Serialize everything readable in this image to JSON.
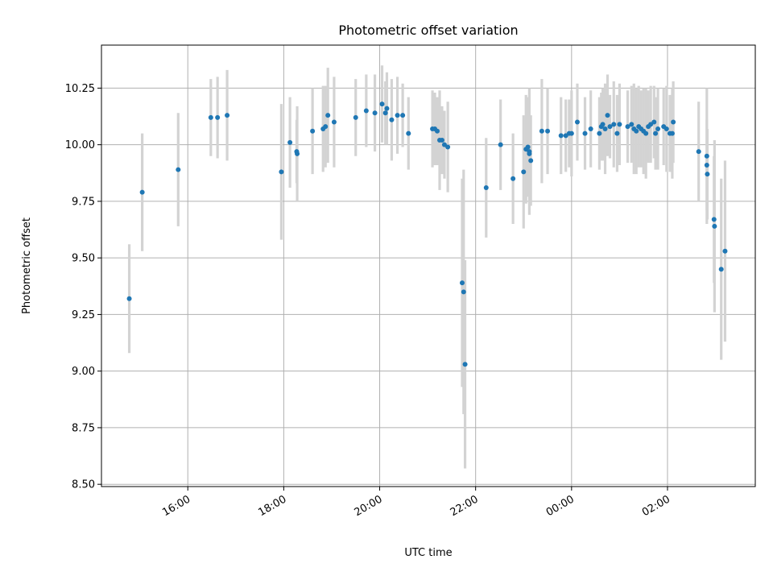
{
  "chart_data": {
    "type": "scatter",
    "title": "Photometric offset variation",
    "xlabel": "UTC time",
    "ylabel": "Photometric offset",
    "x_tick_labels": [
      "16:00",
      "18:00",
      "20:00",
      "22:00",
      "00:00",
      "02:00"
    ],
    "x_tick_hours": [
      16,
      18,
      20,
      22,
      24,
      26
    ],
    "y_tick_labels": [
      "8.50",
      "8.75",
      "9.00",
      "9.25",
      "9.50",
      "9.75",
      "10.00",
      "10.25"
    ],
    "y_ticks": [
      8.5,
      8.75,
      9.0,
      9.25,
      9.5,
      9.75,
      10.0,
      10.25
    ],
    "xlim_hours": [
      14.2,
      27.83
    ],
    "ylim": [
      8.49,
      10.44
    ],
    "grid": true,
    "point_color": "#1f77b4",
    "error_color": "#d3d3d3",
    "points": [
      {
        "h": 14.78,
        "y": 9.32,
        "e": 0.24
      },
      {
        "h": 15.05,
        "y": 9.79,
        "e": 0.26
      },
      {
        "h": 15.8,
        "y": 9.89,
        "e": 0.25
      },
      {
        "h": 16.48,
        "y": 10.12,
        "e": 0.17
      },
      {
        "h": 16.62,
        "y": 10.12,
        "e": 0.18
      },
      {
        "h": 16.82,
        "y": 10.13,
        "e": 0.2
      },
      {
        "h": 17.95,
        "y": 9.88,
        "e": 0.3
      },
      {
        "h": 18.13,
        "y": 10.01,
        "e": 0.2
      },
      {
        "h": 18.27,
        "y": 9.97,
        "e": 0.14
      },
      {
        "h": 18.28,
        "y": 9.96,
        "e": 0.21
      },
      {
        "h": 18.6,
        "y": 10.06,
        "e": 0.19
      },
      {
        "h": 18.82,
        "y": 10.07,
        "e": 0.19
      },
      {
        "h": 18.87,
        "y": 10.08,
        "e": 0.18
      },
      {
        "h": 18.92,
        "y": 10.13,
        "e": 0.21
      },
      {
        "h": 19.05,
        "y": 10.1,
        "e": 0.2
      },
      {
        "h": 19.5,
        "y": 10.12,
        "e": 0.17
      },
      {
        "h": 19.72,
        "y": 10.15,
        "e": 0.16
      },
      {
        "h": 19.9,
        "y": 10.14,
        "e": 0.17
      },
      {
        "h": 20.05,
        "y": 10.18,
        "e": 0.17
      },
      {
        "h": 20.12,
        "y": 10.14,
        "e": 0.14
      },
      {
        "h": 20.15,
        "y": 10.16,
        "e": 0.16
      },
      {
        "h": 20.25,
        "y": 10.11,
        "e": 0.18
      },
      {
        "h": 20.37,
        "y": 10.13,
        "e": 0.17
      },
      {
        "h": 20.48,
        "y": 10.13,
        "e": 0.14
      },
      {
        "h": 20.6,
        "y": 10.05,
        "e": 0.16
      },
      {
        "h": 21.1,
        "y": 10.07,
        "e": 0.17
      },
      {
        "h": 21.15,
        "y": 10.07,
        "e": 0.16
      },
      {
        "h": 21.2,
        "y": 10.06,
        "e": 0.15
      },
      {
        "h": 21.25,
        "y": 10.02,
        "e": 0.22
      },
      {
        "h": 21.3,
        "y": 10.02,
        "e": 0.15
      },
      {
        "h": 21.35,
        "y": 10.0,
        "e": 0.15
      },
      {
        "h": 21.42,
        "y": 9.99,
        "e": 0.2
      },
      {
        "h": 21.72,
        "y": 9.39,
        "e": 0.46
      },
      {
        "h": 21.75,
        "y": 9.35,
        "e": 0.54
      },
      {
        "h": 21.78,
        "y": 9.03,
        "e": 0.46
      },
      {
        "h": 22.22,
        "y": 9.81,
        "e": 0.22
      },
      {
        "h": 22.52,
        "y": 10.0,
        "e": 0.2
      },
      {
        "h": 22.78,
        "y": 9.85,
        "e": 0.2
      },
      {
        "h": 23.0,
        "y": 9.88,
        "e": 0.25
      },
      {
        "h": 23.05,
        "y": 9.98,
        "e": 0.24
      },
      {
        "h": 23.09,
        "y": 9.99,
        "e": 0.22
      },
      {
        "h": 23.12,
        "y": 9.97,
        "e": 0.28
      },
      {
        "h": 23.15,
        "y": 9.93,
        "e": 0.2
      },
      {
        "h": 23.12,
        "y": 9.96,
        "e": 0.18
      },
      {
        "h": 23.38,
        "y": 10.06,
        "e": 0.23
      },
      {
        "h": 23.5,
        "y": 10.06,
        "e": 0.19
      },
      {
        "h": 23.78,
        "y": 10.04,
        "e": 0.17
      },
      {
        "h": 23.88,
        "y": 10.04,
        "e": 0.16
      },
      {
        "h": 23.95,
        "y": 10.05,
        "e": 0.15
      },
      {
        "h": 24.0,
        "y": 10.05,
        "e": 0.19
      },
      {
        "h": 24.12,
        "y": 10.1,
        "e": 0.17
      },
      {
        "h": 24.28,
        "y": 10.05,
        "e": 0.16
      },
      {
        "h": 24.4,
        "y": 10.07,
        "e": 0.17
      },
      {
        "h": 24.58,
        "y": 10.05,
        "e": 0.16
      },
      {
        "h": 24.62,
        "y": 10.08,
        "e": 0.15
      },
      {
        "h": 24.65,
        "y": 10.09,
        "e": 0.16
      },
      {
        "h": 24.7,
        "y": 10.07,
        "e": 0.2
      },
      {
        "h": 24.75,
        "y": 10.13,
        "e": 0.18
      },
      {
        "h": 24.8,
        "y": 10.08,
        "e": 0.14
      },
      {
        "h": 24.88,
        "y": 10.09,
        "e": 0.19
      },
      {
        "h": 24.95,
        "y": 10.05,
        "e": 0.17
      },
      {
        "h": 25.0,
        "y": 10.09,
        "e": 0.18
      },
      {
        "h": 25.17,
        "y": 10.08,
        "e": 0.16
      },
      {
        "h": 25.25,
        "y": 10.09,
        "e": 0.17
      },
      {
        "h": 25.3,
        "y": 10.07,
        "e": 0.2
      },
      {
        "h": 25.35,
        "y": 10.06,
        "e": 0.19
      },
      {
        "h": 25.4,
        "y": 10.08,
        "e": 0.18
      },
      {
        "h": 25.45,
        "y": 10.07,
        "e": 0.17
      },
      {
        "h": 25.5,
        "y": 10.06,
        "e": 0.19
      },
      {
        "h": 25.55,
        "y": 10.05,
        "e": 0.2
      },
      {
        "h": 25.6,
        "y": 10.08,
        "e": 0.16
      },
      {
        "h": 25.65,
        "y": 10.09,
        "e": 0.17
      },
      {
        "h": 25.72,
        "y": 10.1,
        "e": 0.16
      },
      {
        "h": 25.75,
        "y": 10.05,
        "e": 0.16
      },
      {
        "h": 25.8,
        "y": 10.07,
        "e": 0.18
      },
      {
        "h": 25.92,
        "y": 10.08,
        "e": 0.17
      },
      {
        "h": 25.98,
        "y": 10.07,
        "e": 0.19
      },
      {
        "h": 26.05,
        "y": 10.05,
        "e": 0.17
      },
      {
        "h": 26.1,
        "y": 10.05,
        "e": 0.2
      },
      {
        "h": 26.12,
        "y": 10.1,
        "e": 0.18
      },
      {
        "h": 26.65,
        "y": 9.97,
        "e": 0.22
      },
      {
        "h": 26.82,
        "y": 9.95,
        "e": 0.3
      },
      {
        "h": 26.82,
        "y": 9.91,
        "e": 0.2
      },
      {
        "h": 26.83,
        "y": 9.87,
        "e": 0.2
      },
      {
        "h": 26.97,
        "y": 9.67,
        "e": 0.28
      },
      {
        "h": 26.98,
        "y": 9.64,
        "e": 0.38
      },
      {
        "h": 27.12,
        "y": 9.45,
        "e": 0.4
      },
      {
        "h": 27.2,
        "y": 9.53,
        "e": 0.4
      }
    ]
  }
}
